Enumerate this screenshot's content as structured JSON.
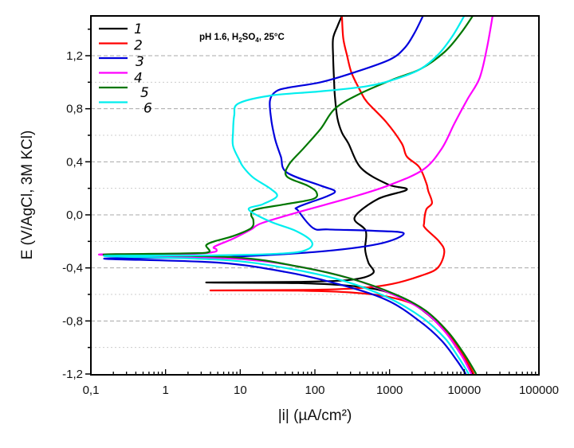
{
  "chart_data": {
    "type": "line",
    "title": "",
    "annotation": {
      "text_parts": [
        "pH 1.6, H",
        "2",
        "SO",
        "4",
        ", 25°C"
      ]
    },
    "xlabel": "|i| (µA/cm²)",
    "ylabel": "E (V/AgCl, 3M KCl)",
    "xscale": "log",
    "xlim": [
      0.1,
      100000
    ],
    "ylim": [
      -1.2,
      1.5
    ],
    "xticks": [
      {
        "value": 0.1,
        "label": "0,1"
      },
      {
        "value": 1,
        "label": "1"
      },
      {
        "value": 10,
        "label": "10"
      },
      {
        "value": 100,
        "label": "100"
      },
      {
        "value": 1000,
        "label": "1000"
      },
      {
        "value": 10000,
        "label": "10000"
      },
      {
        "value": 100000,
        "label": "100000"
      }
    ],
    "yticks": [
      {
        "value": -1.2,
        "label": "-1,2"
      },
      {
        "value": -0.8,
        "label": "-0,8"
      },
      {
        "value": -0.4,
        "label": "-0,4"
      },
      {
        "value": 0.0,
        "label": "0,0"
      },
      {
        "value": 0.4,
        "label": "0,4"
      },
      {
        "value": 0.8,
        "label": "0,8"
      },
      {
        "value": 1.2,
        "label": "1,2"
      }
    ],
    "grid": "horizontal-dashed",
    "legend": {
      "placement": "top-left"
    },
    "series": [
      {
        "name": "1",
        "color": "#000000",
        "points": [
          [
            13000,
            -1.2
          ],
          [
            9000,
            -1.05
          ],
          [
            5000,
            -0.85
          ],
          [
            2200,
            -0.68
          ],
          [
            900,
            -0.58
          ],
          [
            300,
            -0.535
          ],
          [
            60,
            -0.515
          ],
          [
            3.5,
            -0.51
          ],
          [
            60,
            -0.505
          ],
          [
            300,
            -0.49
          ],
          [
            600,
            -0.44
          ],
          [
            520,
            -0.36
          ],
          [
            470,
            -0.26
          ],
          [
            480,
            -0.12
          ],
          [
            340,
            -0.02
          ],
          [
            700,
            0.12
          ],
          [
            1700,
            0.19
          ],
          [
            950,
            0.23
          ],
          [
            420,
            0.35
          ],
          [
            280,
            0.54
          ],
          [
            230,
            0.62
          ],
          [
            200,
            0.73
          ],
          [
            185,
            0.9
          ],
          [
            180,
            1.03
          ],
          [
            175,
            1.2
          ],
          [
            175,
            1.33
          ],
          [
            200,
            1.42
          ],
          [
            230,
            1.5
          ]
        ]
      },
      {
        "name": "2",
        "color": "#ff0000",
        "points": [
          [
            13500,
            -1.2
          ],
          [
            9500,
            -1.05
          ],
          [
            5500,
            -0.86
          ],
          [
            2600,
            -0.7
          ],
          [
            1000,
            -0.62
          ],
          [
            300,
            -0.585
          ],
          [
            60,
            -0.572
          ],
          [
            4,
            -0.57
          ],
          [
            100,
            -0.565
          ],
          [
            450,
            -0.55
          ],
          [
            1100,
            -0.52
          ],
          [
            2600,
            -0.46
          ],
          [
            4400,
            -0.4
          ],
          [
            5400,
            -0.28
          ],
          [
            4600,
            -0.2
          ],
          [
            3000,
            -0.1
          ],
          [
            2900,
            -0.06
          ],
          [
            3100,
            0.04
          ],
          [
            3700,
            0.09
          ],
          [
            3300,
            0.18
          ],
          [
            3100,
            0.24
          ],
          [
            2500,
            0.36
          ],
          [
            1700,
            0.44
          ],
          [
            1450,
            0.54
          ],
          [
            900,
            0.7
          ],
          [
            500,
            0.85
          ],
          [
            410,
            0.93
          ],
          [
            310,
            1.07
          ],
          [
            270,
            1.2
          ],
          [
            240,
            1.33
          ],
          [
            230,
            1.5
          ]
        ]
      },
      {
        "name": "3",
        "color": "#0000dd",
        "points": [
          [
            10500,
            -1.2
          ],
          [
            8000,
            -1.1
          ],
          [
            5000,
            -0.95
          ],
          [
            2500,
            -0.8
          ],
          [
            900,
            -0.64
          ],
          [
            200,
            -0.52
          ],
          [
            40,
            -0.43
          ],
          [
            5,
            -0.36
          ],
          [
            0.15,
            -0.33
          ],
          [
            5,
            -0.32
          ],
          [
            100,
            -0.28
          ],
          [
            700,
            -0.22
          ],
          [
            1550,
            -0.14
          ],
          [
            600,
            -0.12
          ],
          [
            150,
            -0.11
          ],
          [
            95,
            -0.1
          ],
          [
            60,
            0.03
          ],
          [
            60,
            0.06
          ],
          [
            145,
            0.14
          ],
          [
            185,
            0.18
          ],
          [
            120,
            0.22
          ],
          [
            42,
            0.32
          ],
          [
            35,
            0.44
          ],
          [
            30,
            0.55
          ],
          [
            28,
            0.62
          ],
          [
            26,
            0.72
          ],
          [
            25,
            0.86
          ],
          [
            30,
            0.93
          ],
          [
            45,
            0.96
          ],
          [
            120,
            1.0
          ],
          [
            320,
            1.07
          ],
          [
            1000,
            1.17
          ],
          [
            1600,
            1.26
          ],
          [
            2150,
            1.37
          ],
          [
            2800,
            1.5
          ]
        ]
      },
      {
        "name": "4",
        "color": "#ff00ff",
        "points": [
          [
            12500,
            -1.2
          ],
          [
            9000,
            -1.05
          ],
          [
            5500,
            -0.88
          ],
          [
            2800,
            -0.72
          ],
          [
            1100,
            -0.6
          ],
          [
            300,
            -0.48
          ],
          [
            60,
            -0.39
          ],
          [
            8,
            -0.33
          ],
          [
            0.13,
            -0.3
          ],
          [
            2,
            -0.295
          ],
          [
            4.4,
            -0.28
          ],
          [
            4.8,
            -0.26
          ],
          [
            4.5,
            -0.24
          ],
          [
            8,
            -0.18
          ],
          [
            14,
            -0.11
          ],
          [
            20,
            -0.06
          ],
          [
            80,
            0.04
          ],
          [
            300,
            0.13
          ],
          [
            950,
            0.22
          ],
          [
            2800,
            0.34
          ],
          [
            5000,
            0.5
          ],
          [
            7400,
            0.69
          ],
          [
            11000,
            0.87
          ],
          [
            16000,
            1.03
          ],
          [
            20000,
            1.25
          ],
          [
            24000,
            1.5
          ]
        ]
      },
      {
        "name": "5",
        "color": "#007700",
        "points": [
          [
            14500,
            -1.2
          ],
          [
            10000,
            -1.05
          ],
          [
            6000,
            -0.88
          ],
          [
            3000,
            -0.72
          ],
          [
            1200,
            -0.6
          ],
          [
            300,
            -0.48
          ],
          [
            60,
            -0.39
          ],
          [
            8,
            -0.32
          ],
          [
            0.15,
            -0.3
          ],
          [
            2,
            -0.29
          ],
          [
            3.8,
            -0.28
          ],
          [
            3.5,
            -0.23
          ],
          [
            4.5,
            -0.2
          ],
          [
            8,
            -0.16
          ],
          [
            14,
            -0.1
          ],
          [
            15,
            -0.04
          ],
          [
            14,
            0.0
          ],
          [
            16,
            0.04
          ],
          [
            40,
            0.08
          ],
          [
            95,
            0.12
          ],
          [
            105,
            0.17
          ],
          [
            80,
            0.22
          ],
          [
            42,
            0.29
          ],
          [
            45,
            0.38
          ],
          [
            70,
            0.5
          ],
          [
            120,
            0.65
          ],
          [
            185,
            0.8
          ],
          [
            390,
            0.91
          ],
          [
            1100,
            1.02
          ],
          [
            2600,
            1.1
          ],
          [
            5500,
            1.23
          ],
          [
            9000,
            1.37
          ],
          [
            13000,
            1.5
          ]
        ]
      },
      {
        "name": "6",
        "color": "#00eeee",
        "points": [
          [
            11500,
            -1.2
          ],
          [
            8500,
            -1.08
          ],
          [
            5500,
            -0.93
          ],
          [
            2800,
            -0.78
          ],
          [
            1000,
            -0.63
          ],
          [
            250,
            -0.5
          ],
          [
            50,
            -0.41
          ],
          [
            6,
            -0.34
          ],
          [
            0.15,
            -0.31
          ],
          [
            5,
            -0.305
          ],
          [
            40,
            -0.29
          ],
          [
            80,
            -0.26
          ],
          [
            90,
            -0.2
          ],
          [
            55,
            -0.12
          ],
          [
            25,
            -0.05
          ],
          [
            13,
            0.04
          ],
          [
            20,
            0.08
          ],
          [
            31,
            0.14
          ],
          [
            25,
            0.2
          ],
          [
            15,
            0.28
          ],
          [
            11,
            0.36
          ],
          [
            9.6,
            0.42
          ],
          [
            8,
            0.52
          ],
          [
            8,
            0.62
          ],
          [
            8.3,
            0.75
          ],
          [
            9.5,
            0.84
          ],
          [
            26,
            0.9
          ],
          [
            112,
            0.93
          ],
          [
            500,
            0.97
          ],
          [
            1300,
            1.03
          ],
          [
            2600,
            1.1
          ],
          [
            4500,
            1.21
          ],
          [
            7000,
            1.35
          ],
          [
            10000,
            1.5
          ]
        ]
      }
    ]
  }
}
